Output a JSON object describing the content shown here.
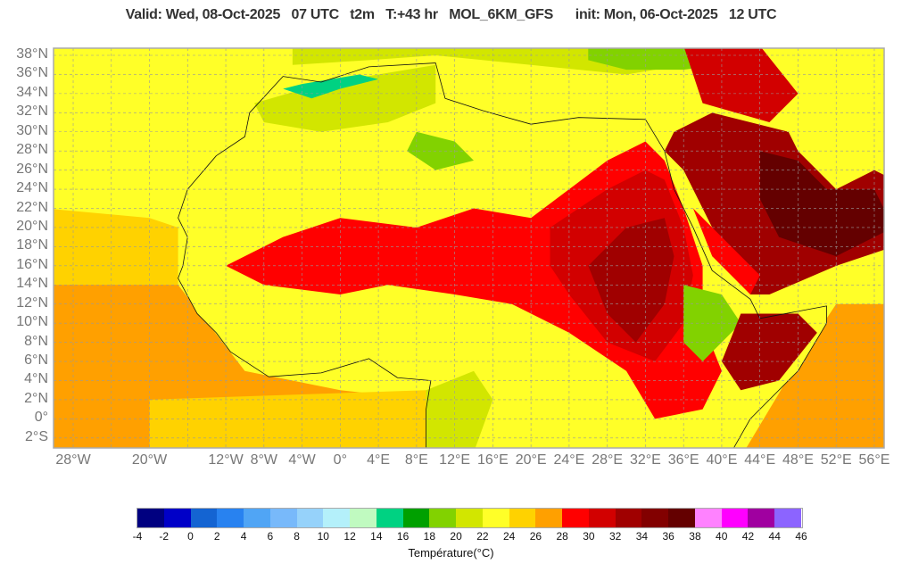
{
  "header": {
    "title": "Valid: Wed, 08-Oct-2025   07 UTC   t2m   T:+43 hr   MOL_6KM_GFS      init: Mon, 06-Oct-2025   12 UTC"
  },
  "map": {
    "lat_ticks": [
      "38°N",
      "36°N",
      "34°N",
      "32°N",
      "30°N",
      "28°N",
      "26°N",
      "24°N",
      "22°N",
      "20°N",
      "18°N",
      "16°N",
      "14°N",
      "12°N",
      "10°N",
      "8°N",
      "6°N",
      "4°N",
      "2°N",
      "0°",
      "2°S"
    ],
    "lon_ticks": [
      "28°W",
      "20°W",
      "12°W",
      "8°W",
      "4°W",
      "0°",
      "4°E",
      "8°E",
      "12°E",
      "16°E",
      "20°E",
      "24°E",
      "28°E",
      "32°E",
      "36°E",
      "40°E",
      "44°E",
      "48°E",
      "52°E",
      "56°E"
    ],
    "grid": true
  },
  "colorbar": {
    "title": "Température(°C)",
    "labels": [
      "-4",
      "-2",
      "0",
      "2",
      "4",
      "6",
      "8",
      "10",
      "12",
      "14",
      "16",
      "18",
      "20",
      "22",
      "24",
      "26",
      "28",
      "30",
      "32",
      "34",
      "36",
      "38",
      "40",
      "42",
      "44",
      "46"
    ],
    "colors": [
      "#000080",
      "#0000c8",
      "#1464d2",
      "#2882f0",
      "#50a5f5",
      "#78b9fa",
      "#96d2fa",
      "#b4f0fa",
      "#c0fac0",
      "#00d282",
      "#00a000",
      "#82d200",
      "#d2e600",
      "#ffff28",
      "#ffd200",
      "#ffa000",
      "#ff0000",
      "#d20000",
      "#a00000",
      "#820000",
      "#640000",
      "#ff82ff",
      "#ff00ff",
      "#a000a0",
      "#8c64ff"
    ]
  }
}
